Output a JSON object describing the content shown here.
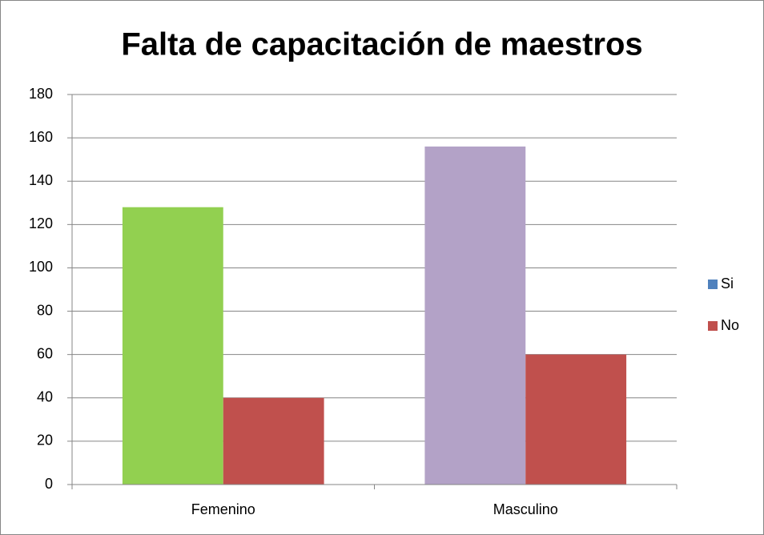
{
  "chart_data": {
    "type": "bar",
    "title": "Falta de capacitación de maestros",
    "categories": [
      "Femenino",
      "Masculino"
    ],
    "series": [
      {
        "name": "Si",
        "color": "#4f81bd",
        "point_colors": [
          "#92d050",
          "#b3a2c7"
        ],
        "values": [
          128,
          156
        ]
      },
      {
        "name": "No",
        "color": "#c0504d",
        "values": [
          40,
          60
        ]
      }
    ],
    "ylim": [
      0,
      180
    ],
    "yticks": [
      0,
      20,
      40,
      60,
      80,
      100,
      120,
      140,
      160,
      180
    ],
    "grid": true,
    "legend": "right"
  }
}
